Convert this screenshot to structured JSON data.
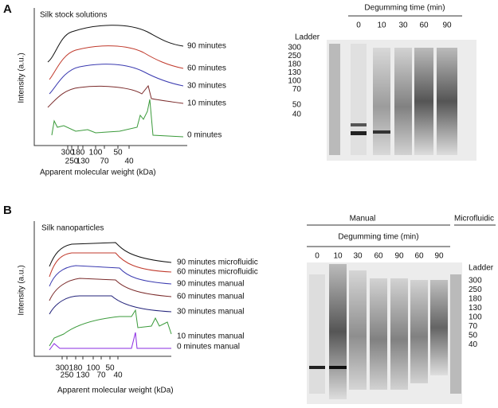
{
  "panel_a": {
    "label": "A",
    "plot": {
      "title": "Silk stock solutions",
      "y_label": "Intensity (a.u.)",
      "x_label": "Apparent molecular weight (kDa)",
      "x_ticks": [
        "300",
        "250",
        "180",
        "130",
        "100",
        "70",
        "50",
        "40"
      ],
      "traces": [
        "90 minutes",
        "60 minutes",
        "30 minutes",
        "10 minutes",
        "0 minutes"
      ]
    },
    "gel": {
      "header": "Degumming time (min)",
      "lanes": [
        "0",
        "10",
        "30",
        "60",
        "90"
      ],
      "ladder_label": "Ladder",
      "ladder": [
        "300",
        "250",
        "180",
        "130",
        "100",
        "70",
        "50",
        "40"
      ]
    }
  },
  "panel_b": {
    "label": "B",
    "plot": {
      "title": "Silk nanoparticles",
      "y_label": "Intensity (a.u.)",
      "x_label": "Apparent molecular weight (kDa)",
      "x_ticks": [
        "300",
        "250",
        "180",
        "130",
        "100",
        "70",
        "50",
        "40"
      ],
      "traces": [
        "90 minutes microfluidic",
        "60 minutes microfluidic",
        "90 minutes manual",
        "60 minutes manual",
        "30 minutes manual",
        "10 minutes manual",
        "0 minutes manual"
      ]
    },
    "gel": {
      "groups": [
        "Manual",
        "Microfluidic"
      ],
      "header": "Degumming time (min)",
      "lanes": [
        "0",
        "10",
        "30",
        "60",
        "90",
        "60",
        "90"
      ],
      "ladder_label": "Ladder",
      "ladder": [
        "300",
        "250",
        "180",
        "130",
        "100",
        "70",
        "50",
        "40"
      ]
    }
  }
}
